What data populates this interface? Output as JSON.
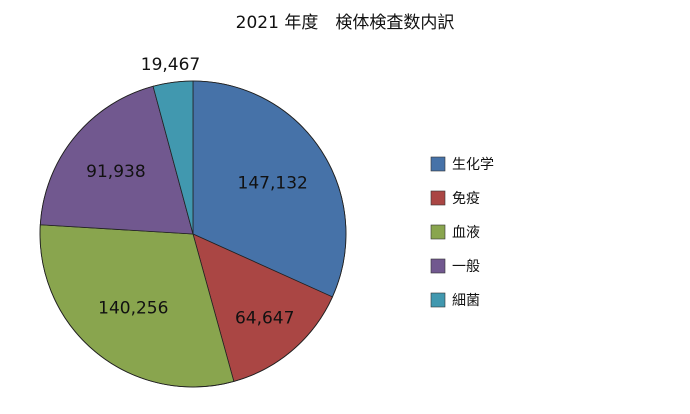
{
  "chart_data": {
    "type": "pie",
    "title": "2021 年度　検体検査数内訳",
    "categories": [
      "生化学",
      "免疫",
      "血液",
      "一般",
      "細菌"
    ],
    "values": [
      147132,
      64647,
      140256,
      91938,
      19467
    ],
    "data_labels": [
      "147,132",
      "64,647",
      "140,256",
      "91,938",
      "19,467"
    ],
    "colors": [
      "#4672A8",
      "#AA4644",
      "#89A54E",
      "#71588F",
      "#4198AF"
    ],
    "start": "12 o'clock, clockwise",
    "legend_position": "right"
  }
}
